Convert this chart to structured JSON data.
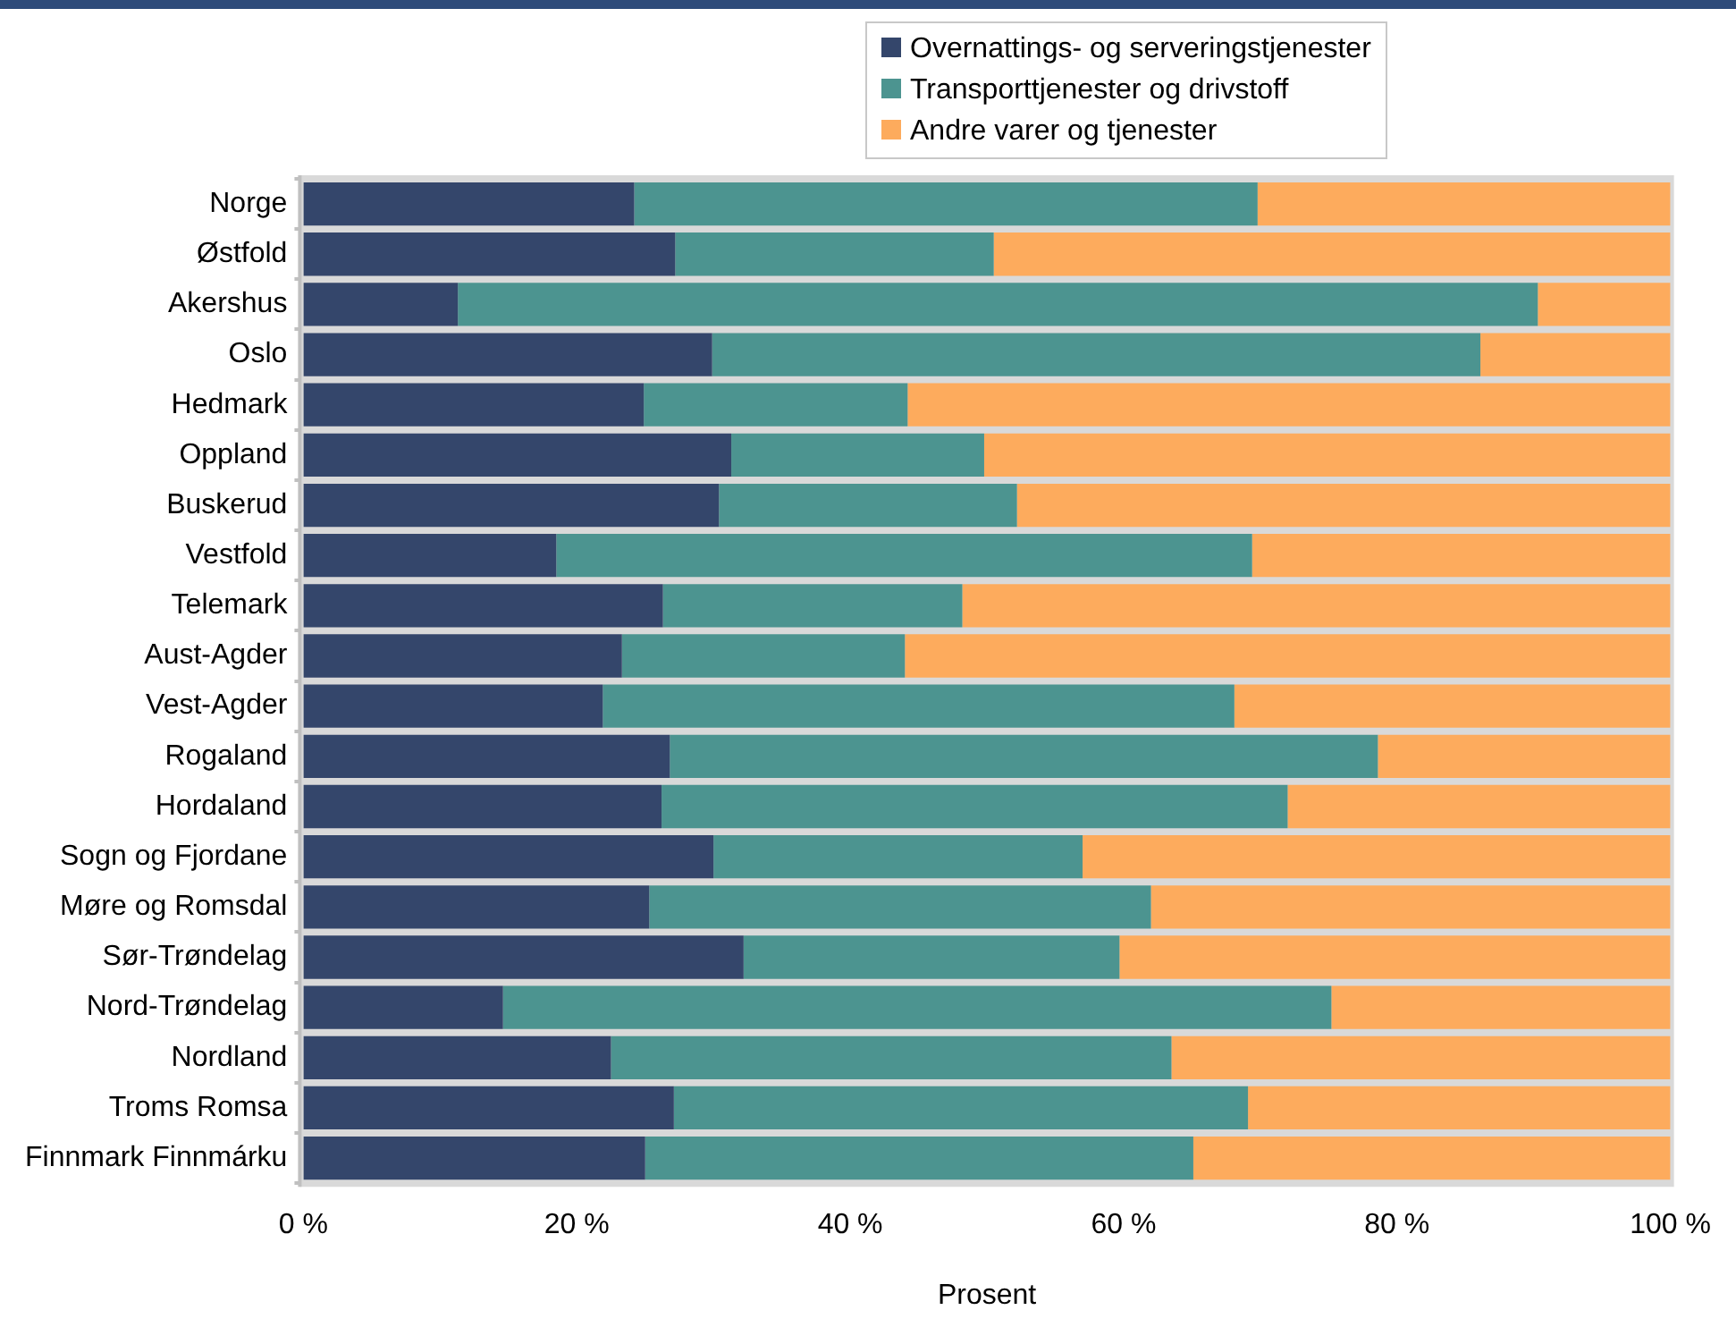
{
  "chart_data": {
    "type": "bar",
    "orientation": "horizontal",
    "stacked": true,
    "xlabel": "Prosent",
    "legend": "top right",
    "categories": [
      "Norge",
      "Østfold",
      "Akershus",
      "Oslo",
      "Hedmark",
      "Oppland",
      "Buskerud",
      "Vestfold",
      "Telemark",
      "Aust-Agder",
      "Vest-Agder",
      "Rogaland",
      "Hordaland",
      "Sogn og Fjordane",
      "Møre og Romsdal",
      "Sør-Trøndelag",
      "Nord-Trøndelag",
      "Nordland",
      "Troms Romsa",
      "Finnmark Finnmárku"
    ],
    "series": [
      {
        "name": "Overnattings- og serveringstjenester",
        "color": "#34466b",
        "values": [
          24.2,
          27.2,
          11.3,
          29.9,
          24.9,
          31.3,
          30.4,
          18.5,
          26.3,
          23.3,
          21.9,
          26.8,
          26.2,
          30.0,
          25.3,
          32.2,
          14.6,
          22.5,
          27.1,
          25.0
        ]
      },
      {
        "name": "Transporttjenester og drivstoff",
        "color": "#4c9490",
        "values": [
          45.6,
          23.3,
          79.0,
          56.2,
          19.3,
          18.5,
          21.8,
          50.9,
          21.9,
          20.7,
          46.2,
          51.8,
          45.8,
          27.0,
          36.7,
          27.5,
          60.6,
          41.0,
          42.0,
          40.1
        ]
      },
      {
        "name": "Andre varer og tjenester",
        "color": "#fdab5d",
        "values": [
          30.2,
          49.5,
          9.7,
          13.9,
          55.8,
          50.2,
          47.8,
          30.6,
          51.8,
          56.0,
          31.9,
          21.4,
          28.0,
          43.0,
          38.0,
          40.3,
          24.8,
          36.5,
          30.9,
          34.9
        ]
      }
    ],
    "xlim": [
      0,
      100
    ],
    "xticks": [
      {
        "value": 0,
        "label": "0 %"
      },
      {
        "value": 20,
        "label": "20 %"
      },
      {
        "value": 40,
        "label": "40 %"
      },
      {
        "value": 60,
        "label": "60 %"
      },
      {
        "value": 80,
        "label": "80 %"
      },
      {
        "value": 100,
        "label": "100 %"
      }
    ]
  }
}
